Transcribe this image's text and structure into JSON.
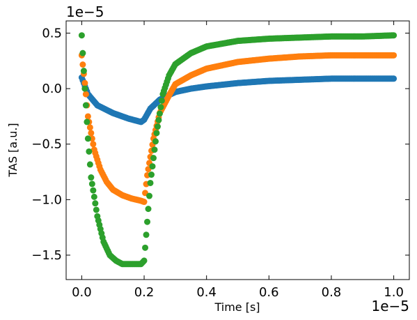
{
  "chart_data": {
    "type": "scatter",
    "title": "",
    "xlabel": "Time [s]",
    "ylabel": "TAS [a.u.]",
    "x_offset_text": "1e−5",
    "y_offset_text": "1e−5",
    "xlim": [
      -5e-07,
      1.05e-05
    ],
    "ylim": [
      -1.72e-05,
      6.1e-06
    ],
    "x_ticks": [
      0,
      2e-06,
      4e-06,
      6e-06,
      8e-06,
      1e-05
    ],
    "x_tick_labels": [
      "0.0",
      "0.2",
      "0.4",
      "0.6",
      "0.8",
      "1.0"
    ],
    "y_ticks": [
      5e-06,
      0.0,
      -5e-06,
      -1e-05,
      -1.5e-05
    ],
    "y_tick_labels": [
      "0.5",
      "0.0",
      "−0.5",
      "−1.0",
      "−1.5"
    ],
    "grid": false,
    "legend": "none",
    "series": [
      {
        "color": "#1f77b4",
        "x": [
          0,
          2e-07,
          5e-07,
          1e-06,
          1.5e-06,
          1.9e-06,
          2e-06,
          2.2e-06,
          2.5e-06,
          3e-06,
          3.5e-06,
          4e-06,
          5e-06,
          6e-06,
          7e-06,
          8e-06,
          9e-06,
          1e-05
        ],
        "y": [
          1e-06,
          -5e-07,
          -1.5e-06,
          -2.2e-06,
          -2.7e-06,
          -3e-06,
          -2.8e-06,
          -1.8e-06,
          -1e-06,
          -3e-07,
          0.0,
          2e-07,
          5e-07,
          7e-07,
          8e-07,
          9e-07,
          9e-07,
          9e-07
        ]
      },
      {
        "color": "#ff7f0e",
        "x": [
          0,
          1e-07,
          2e-07,
          4e-07,
          6e-07,
          8e-07,
          1e-06,
          1.3e-06,
          1.6e-06,
          1.9e-06,
          2e-06,
          2.1e-06,
          2.3e-06,
          2.5e-06,
          2.8e-06,
          3e-06,
          3.5e-06,
          4e-06,
          5e-06,
          6e-06,
          7e-06,
          8e-06,
          9e-06,
          1e-05
        ],
        "y": [
          3e-06,
          5e-07,
          -2.5e-06,
          -5.5e-06,
          -7.3e-06,
          -8.4e-06,
          -9.1e-06,
          -9.6e-06,
          -9.9e-06,
          -1.01e-05,
          -1.02e-05,
          -7.8e-06,
          -4.5e-06,
          -2.2e-06,
          -6e-07,
          4e-07,
          1.2e-06,
          1.8e-06,
          2.4e-06,
          2.7e-06,
          2.9e-06,
          3e-06,
          3e-06,
          3e-06
        ]
      },
      {
        "color": "#2ca02c",
        "x": [
          0,
          1e-07,
          2e-07,
          3e-07,
          5e-07,
          7e-07,
          9e-07,
          1.1e-06,
          1.3e-06,
          1.6e-06,
          1.9e-06,
          2e-06,
          2.1e-06,
          2.2e-06,
          2.4e-06,
          2.6e-06,
          2.8e-06,
          3e-06,
          3.5e-06,
          4e-06,
          5e-06,
          6e-06,
          7e-06,
          8e-06,
          9e-06,
          1e-05
        ],
        "y": [
          4.8e-06,
          0.0,
          -4.5e-06,
          -8e-06,
          -1.15e-05,
          -1.38e-05,
          -1.5e-05,
          -1.55e-05,
          -1.58e-05,
          -1.58e-05,
          -1.58e-05,
          -1.55e-05,
          -1.2e-05,
          -8.5e-06,
          -4e-06,
          -5e-07,
          1.2e-06,
          2.2e-06,
          3.2e-06,
          3.8e-06,
          4.3e-06,
          4.5e-06,
          4.6e-06,
          4.7e-06,
          4.7e-06,
          4.8e-06
        ]
      }
    ]
  }
}
